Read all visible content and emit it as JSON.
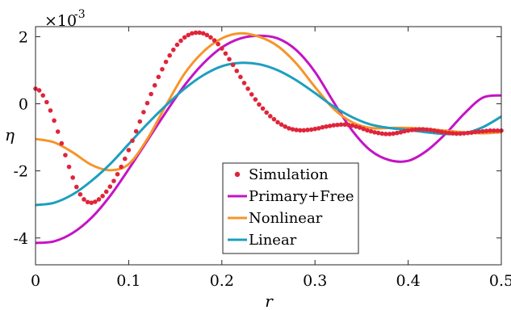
{
  "chart_data": {
    "type": "line",
    "xlabel": "r",
    "ylabel": "η",
    "xlim": [
      0,
      0.5
    ],
    "ylim": [
      -4.8,
      2.3
    ],
    "xticks": [
      "0",
      "0.1",
      "0.2",
      "0.3",
      "0.4",
      "0.5"
    ],
    "yticks": [
      "-4",
      "-2",
      "0",
      "2"
    ],
    "y_multiplier": "×10",
    "y_multiplier_exp": "-3",
    "grid": false,
    "legend_position": "lower-center",
    "series": [
      {
        "name": "Simulation",
        "style": "dots",
        "color": "#e0243a",
        "x": [
          0.0,
          0.004,
          0.008,
          0.012,
          0.016,
          0.02,
          0.024,
          0.028,
          0.032,
          0.036,
          0.04,
          0.044,
          0.048,
          0.052,
          0.056,
          0.06,
          0.064,
          0.068,
          0.072,
          0.076,
          0.08,
          0.084,
          0.088,
          0.092,
          0.096,
          0.1,
          0.104,
          0.108,
          0.112,
          0.116,
          0.12,
          0.124,
          0.128,
          0.132,
          0.136,
          0.14,
          0.144,
          0.148,
          0.152,
          0.156,
          0.16,
          0.164,
          0.168,
          0.172,
          0.176,
          0.18,
          0.184,
          0.188,
          0.192,
          0.196,
          0.2,
          0.204,
          0.208,
          0.212,
          0.216,
          0.22,
          0.224,
          0.228,
          0.232,
          0.236,
          0.24,
          0.244,
          0.248,
          0.252,
          0.256,
          0.26,
          0.264,
          0.268,
          0.272,
          0.276,
          0.28,
          0.284,
          0.288,
          0.292,
          0.296,
          0.3,
          0.304,
          0.308,
          0.312,
          0.316,
          0.32,
          0.324,
          0.328,
          0.332,
          0.336,
          0.34,
          0.344,
          0.348,
          0.352,
          0.356,
          0.36,
          0.364,
          0.368,
          0.372,
          0.376,
          0.38,
          0.384,
          0.388,
          0.392,
          0.396,
          0.4,
          0.404,
          0.408,
          0.412,
          0.416,
          0.42,
          0.424,
          0.428,
          0.432,
          0.436,
          0.44,
          0.444,
          0.448,
          0.452,
          0.456,
          0.46,
          0.464,
          0.468,
          0.472,
          0.476,
          0.48,
          0.484,
          0.488,
          0.492,
          0.496,
          0.5
        ],
        "y": [
          0.45,
          0.4,
          0.25,
          0.05,
          -0.2,
          -0.5,
          -0.83,
          -1.18,
          -1.53,
          -1.88,
          -2.2,
          -2.48,
          -2.7,
          -2.85,
          -2.93,
          -2.95,
          -2.92,
          -2.85,
          -2.75,
          -2.62,
          -2.47,
          -2.3,
          -2.1,
          -1.88,
          -1.64,
          -1.38,
          -1.1,
          -0.82,
          -0.53,
          -0.25,
          0.02,
          0.29,
          0.55,
          0.8,
          1.03,
          1.25,
          1.44,
          1.61,
          1.76,
          1.88,
          1.98,
          2.05,
          2.1,
          2.12,
          2.12,
          2.1,
          2.05,
          1.98,
          1.89,
          1.78,
          1.65,
          1.5,
          1.33,
          1.16,
          0.98,
          0.8,
          0.62,
          0.45,
          0.28,
          0.13,
          -0.02,
          -0.14,
          -0.26,
          -0.37,
          -0.46,
          -0.55,
          -0.62,
          -0.68,
          -0.73,
          -0.76,
          -0.78,
          -0.79,
          -0.79,
          -0.78,
          -0.77,
          -0.75,
          -0.73,
          -0.7,
          -0.68,
          -0.66,
          -0.64,
          -0.63,
          -0.62,
          -0.62,
          -0.63,
          -0.65,
          -0.68,
          -0.71,
          -0.75,
          -0.79,
          -0.82,
          -0.85,
          -0.87,
          -0.89,
          -0.9,
          -0.9,
          -0.89,
          -0.87,
          -0.85,
          -0.82,
          -0.8,
          -0.78,
          -0.77,
          -0.76,
          -0.76,
          -0.77,
          -0.78,
          -0.8,
          -0.82,
          -0.84,
          -0.86,
          -0.87,
          -0.88,
          -0.89,
          -0.89,
          -0.88,
          -0.87,
          -0.86,
          -0.84,
          -0.83,
          -0.82,
          -0.81,
          -0.8,
          -0.8,
          -0.8,
          -0.8
        ]
      },
      {
        "name": "Primary+Free",
        "style": "line",
        "color": "#c414c4",
        "x": [
          0,
          0.02,
          0.04,
          0.06,
          0.08,
          0.1,
          0.12,
          0.14,
          0.16,
          0.18,
          0.2,
          0.22,
          0.24,
          0.26,
          0.28,
          0.3,
          0.32,
          0.34,
          0.36,
          0.38,
          0.4,
          0.42,
          0.44,
          0.46,
          0.48,
          0.5
        ],
        "y": [
          -4.15,
          -4.1,
          -3.85,
          -3.4,
          -2.75,
          -1.95,
          -1.1,
          -0.25,
          0.55,
          1.2,
          1.68,
          1.95,
          2.03,
          1.95,
          1.6,
          0.95,
          0.05,
          -0.8,
          -1.4,
          -1.68,
          -1.7,
          -1.4,
          -0.9,
          -0.3,
          0.18,
          0.25
        ]
      },
      {
        "name": "Nonlinear",
        "style": "line",
        "color": "#f5952a",
        "x": [
          0,
          0.02,
          0.04,
          0.06,
          0.08,
          0.1,
          0.12,
          0.14,
          0.16,
          0.18,
          0.2,
          0.22,
          0.24,
          0.26,
          0.28,
          0.3,
          0.32,
          0.34,
          0.36,
          0.38,
          0.4,
          0.42,
          0.44,
          0.46,
          0.48,
          0.5
        ],
        "y": [
          -1.05,
          -1.15,
          -1.45,
          -1.82,
          -1.98,
          -1.8,
          -1.05,
          -0.05,
          0.9,
          1.55,
          1.95,
          2.1,
          2.0,
          1.72,
          1.2,
          0.5,
          -0.15,
          -0.55,
          -0.72,
          -0.72,
          -0.72,
          -0.75,
          -0.8,
          -0.85,
          -0.88,
          -0.85
        ]
      },
      {
        "name": "Linear",
        "style": "line",
        "color": "#1c9fbf",
        "x": [
          0,
          0.02,
          0.04,
          0.06,
          0.08,
          0.1,
          0.12,
          0.14,
          0.16,
          0.18,
          0.2,
          0.22,
          0.24,
          0.26,
          0.28,
          0.3,
          0.32,
          0.34,
          0.36,
          0.38,
          0.4,
          0.42,
          0.44,
          0.46,
          0.48,
          0.5
        ],
        "y": [
          -3.02,
          -2.95,
          -2.7,
          -2.3,
          -1.8,
          -1.2,
          -0.6,
          -0.05,
          0.45,
          0.85,
          1.12,
          1.22,
          1.18,
          1.0,
          0.7,
          0.32,
          -0.08,
          -0.4,
          -0.62,
          -0.72,
          -0.78,
          -0.85,
          -0.9,
          -0.88,
          -0.7,
          -0.38
        ]
      }
    ]
  }
}
